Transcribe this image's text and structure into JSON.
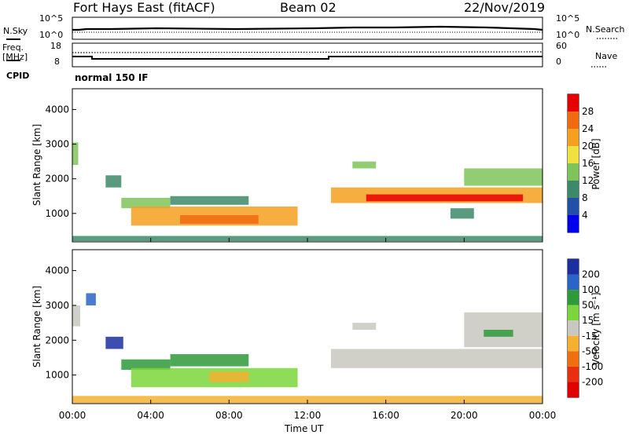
{
  "header": {
    "title": "Fort Hays East (fitACF)",
    "beam": "Beam 02",
    "date": "22/Nov/2019"
  },
  "panel_labels": {
    "nsky": "N.Sky",
    "nsky_ticks": [
      "10^5",
      "10^0"
    ],
    "nsearch": "N.Search",
    "nsearch_ticks": [
      "10^5",
      "10^0"
    ],
    "freq_top": "Freq.",
    "freq_unit": "[MHz]",
    "freq_ticks": [
      "18",
      "8"
    ],
    "nave": "Nave",
    "nave_ticks": [
      "60",
      "0"
    ],
    "cpid": "CPID",
    "mode": "normal 150 IF"
  },
  "axes": {
    "ylabel": "Slant Range [km]",
    "xlabel": "Time UT",
    "xticks": [
      "00:00",
      "04:00",
      "08:00",
      "12:00",
      "16:00",
      "20:00",
      "00:00"
    ],
    "yticks": [
      "1000",
      "2000",
      "3000",
      "4000"
    ]
  },
  "power_bar": {
    "label": "Power [dB]",
    "ticks": [
      "4",
      "8",
      "12",
      "16",
      "20",
      "24",
      "28"
    ],
    "colors": [
      "#0000ee",
      "#224fa8",
      "#3d8a6a",
      "#7fc45a",
      "#f0e040",
      "#f5a020",
      "#f06a10",
      "#e60000"
    ]
  },
  "velocity_bar": {
    "label": "Velocity [m s⁻¹]",
    "ticks": [
      "200",
      "100",
      "50",
      "15",
      "-15",
      "-50",
      "-100",
      "-200"
    ],
    "colors": [
      "#1b2fa0",
      "#2a64c8",
      "#2e9a3a",
      "#7ad63a",
      "#c8c8c0",
      "#f5b030",
      "#f07010",
      "#e83010",
      "#e00000"
    ]
  },
  "chart_data": [
    {
      "type": "heatmap",
      "panel": "power",
      "title": "",
      "xlabel": "Time UT",
      "ylabel": "Slant Range [km]",
      "xlim_hours": [
        0,
        24
      ],
      "ylim": [
        180,
        4600
      ],
      "colorbar": "Power [dB]",
      "clim": [
        0,
        32
      ],
      "regions": [
        {
          "t": [
            0.0,
            0.3
          ],
          "r": [
            2400,
            3050
          ],
          "v": 14
        },
        {
          "t": [
            1.7,
            2.5
          ],
          "r": [
            1750,
            2100
          ],
          "v": 10
        },
        {
          "t": [
            2.5,
            5.0
          ],
          "r": [
            1150,
            1450
          ],
          "v": 12
        },
        {
          "t": [
            3.0,
            11.5
          ],
          "r": [
            650,
            1200
          ],
          "v": 20
        },
        {
          "t": [
            5.5,
            9.5
          ],
          "r": [
            700,
            950
          ],
          "v": 26
        },
        {
          "t": [
            5.0,
            9.0
          ],
          "r": [
            1250,
            1500
          ],
          "v": 10
        },
        {
          "t": [
            0.0,
            24.0
          ],
          "r": [
            200,
            350
          ],
          "v": 10
        },
        {
          "t": [
            14.3,
            15.5
          ],
          "r": [
            2300,
            2500
          ],
          "v": 14
        },
        {
          "t": [
            13.2,
            24.0
          ],
          "r": [
            1300,
            1750
          ],
          "v": 22
        },
        {
          "t": [
            15.0,
            23.0
          ],
          "r": [
            1350,
            1550
          ],
          "v": 28
        },
        {
          "t": [
            19.3,
            20.5
          ],
          "r": [
            850,
            1150
          ],
          "v": 10
        },
        {
          "t": [
            20.0,
            24.0
          ],
          "r": [
            1800,
            2300
          ],
          "v": 12
        }
      ]
    },
    {
      "type": "heatmap",
      "panel": "velocity",
      "title": "",
      "xlabel": "Time UT",
      "ylabel": "Slant Range [km]",
      "xlim_hours": [
        0,
        24
      ],
      "ylim": [
        180,
        4600
      ],
      "colorbar": "Velocity [m s⁻¹]",
      "clim": [
        -200,
        200
      ],
      "regions": [
        {
          "t": [
            0.0,
            0.4
          ],
          "r": [
            2400,
            3000
          ],
          "v": 0
        },
        {
          "t": [
            0.7,
            1.2
          ],
          "r": [
            3000,
            3350
          ],
          "v": 100
        },
        {
          "t": [
            1.7,
            2.6
          ],
          "r": [
            1750,
            2100
          ],
          "v": 150
        },
        {
          "t": [
            2.5,
            5.0
          ],
          "r": [
            1150,
            1450
          ],
          "v": 50
        },
        {
          "t": [
            3.0,
            11.5
          ],
          "r": [
            650,
            1200
          ],
          "v": 20
        },
        {
          "t": [
            5.0,
            9.0
          ],
          "r": [
            1250,
            1600
          ],
          "v": 50
        },
        {
          "t": [
            7.0,
            9.0
          ],
          "r": [
            800,
            1100
          ],
          "v": -30
        },
        {
          "t": [
            0.0,
            24.0
          ],
          "r": [
            200,
            400
          ],
          "v": -30
        },
        {
          "t": [
            14.3,
            15.5
          ],
          "r": [
            2300,
            2500
          ],
          "v": 0
        },
        {
          "t": [
            13.2,
            24.0
          ],
          "r": [
            1200,
            1750
          ],
          "v": 0
        },
        {
          "t": [
            20.0,
            24.0
          ],
          "r": [
            1800,
            2800
          ],
          "v": 0
        },
        {
          "t": [
            21.0,
            22.5
          ],
          "r": [
            2100,
            2300
          ],
          "v": 60
        }
      ]
    }
  ]
}
